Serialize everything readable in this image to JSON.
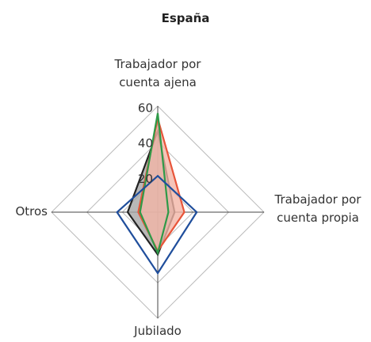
{
  "chart_data": {
    "type": "radar",
    "title": "España",
    "categories": [
      "Trabajador por cuenta ajena",
      "Trabajador por cuenta propia",
      "Jubilado",
      "Otros"
    ],
    "series": [
      {
        "color": "#222222",
        "fill": "#a6a6a6",
        "values": [
          46,
          9.5,
          24,
          17
        ]
      },
      {
        "color": "#e8553a",
        "fill": "#f3b5a6",
        "values": [
          53,
          15,
          22,
          11
        ]
      },
      {
        "color": "#2e9a48",
        "values": [
          56,
          6,
          23,
          10
        ]
      },
      {
        "color": "#1f4e9c",
        "values": [
          20.5,
          22,
          34.5,
          23
        ]
      }
    ],
    "ylim": [
      0,
      60
    ],
    "yticks": [
      20,
      40,
      60
    ],
    "grid": true
  }
}
